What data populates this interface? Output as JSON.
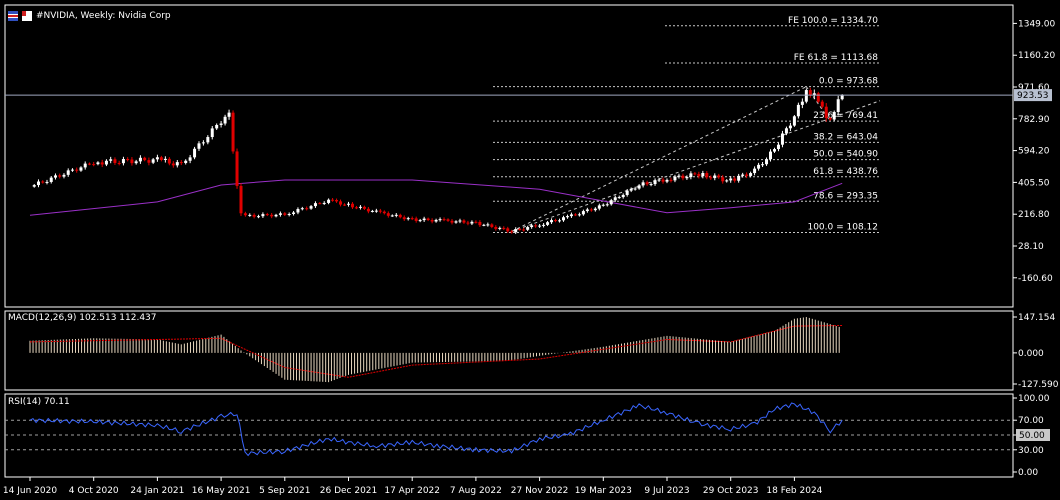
{
  "window": {
    "title": "#NVIDIA, Weekly:  Nvidia Corp",
    "colors": {
      "background": "#000000",
      "grid": "#ffffff",
      "bull": "#ffffff",
      "bear": "#e00000",
      "ma": "#9a30c8",
      "rsi": "#3a66ff",
      "macd_signal": "#e00000",
      "price_line": "#a0a8c0"
    }
  },
  "chart_data": [
    {
      "type": "candlestick",
      "panel": "main",
      "title": "#NVIDIA, Weekly:  Nvidia Corp",
      "y_axis_ticks": [
        1349.0,
        1160.2,
        971.6,
        782.9,
        594.2,
        405.5,
        216.8,
        28.1,
        -160.6
      ],
      "y_axis_ticks_labels": [
        "1349.00",
        "1160.20",
        "971.60",
        "782.90",
        "594.20",
        "405.50",
        "216.80",
        "28.10",
        "-160.60"
      ],
      "ylim": [
        -260,
        1410
      ],
      "current_price": 923.53,
      "current_price_label": "923.53",
      "x_axis_ticks": [
        "14 Jun 2020",
        "4 Oct 2020",
        "24 Jan 2021",
        "16 May 2021",
        "5 Sep 2021",
        "26 Dec 2021",
        "17 Apr 2022",
        "7 Aug 2022",
        "27 Nov 2022",
        "19 Mar 2023",
        "9 Jul 2023",
        "29 Oct 2023",
        "18 Feb 2024"
      ],
      "fibonacci_levels": [
        {
          "label": "FE 100.0 = 1334.70",
          "value": 1334.7
        },
        {
          "label": "FE 61.8 = 1113.68",
          "value": 1113.68
        },
        {
          "label": "0.0 = 973.68",
          "value": 973.68
        },
        {
          "label": "23.6 = 769.41",
          "value": 769.41
        },
        {
          "label": "38.2 = 643.04",
          "value": 643.04
        },
        {
          "label": "50.0 = 540.90",
          "value": 540.9
        },
        {
          "label": "61.8 = 438.76",
          "value": 438.76
        },
        {
          "label": "78.6 = 293.35",
          "value": 293.35
        },
        {
          "label": "100.0 = 108.12",
          "value": 108.12
        }
      ],
      "price_series": [
        {
          "date": "14 Jun 2020",
          "close": 380
        },
        {
          "date": "4 Oct 2020",
          "close": 525
        },
        {
          "date": "24 Jan 2021",
          "close": 540
        },
        {
          "date": "7 Mar 2021",
          "close": 510
        },
        {
          "date": "16 May 2021",
          "close": 770
        },
        {
          "date": "30 May 2021",
          "close": 800
        },
        {
          "date": "20 Jun 2021",
          "close": 205
        },
        {
          "date": "5 Sep 2021",
          "close": 215
        },
        {
          "date": "21 Nov 2021",
          "close": 300
        },
        {
          "date": "26 Dec 2021",
          "close": 270
        },
        {
          "date": "13 Feb 2022",
          "close": 230
        },
        {
          "date": "17 Apr 2022",
          "close": 185
        },
        {
          "date": "5 Jun 2022",
          "close": 180
        },
        {
          "date": "7 Aug 2022",
          "close": 165
        },
        {
          "date": "9 Oct 2022",
          "close": 115
        },
        {
          "date": "27 Nov 2022",
          "close": 155
        },
        {
          "date": "15 Jan 2023",
          "close": 200
        },
        {
          "date": "19 Mar 2023",
          "close": 270
        },
        {
          "date": "21 May 2023",
          "close": 390
        },
        {
          "date": "9 Jul 2023",
          "close": 425
        },
        {
          "date": "3 Sep 2023",
          "close": 455
        },
        {
          "date": "29 Oct 2023",
          "close": 415
        },
        {
          "date": "10 Dec 2023",
          "close": 475
        },
        {
          "date": "14 Jan 2024",
          "close": 600
        },
        {
          "date": "18 Feb 2024",
          "close": 800
        },
        {
          "date": "10 Mar 2024",
          "close": 960
        },
        {
          "date": "31 Mar 2024",
          "close": 880
        },
        {
          "date": "21 Apr 2024",
          "close": 780
        },
        {
          "date": "12 May 2024",
          "close": 923.53
        }
      ],
      "moving_average": [
        {
          "date": "14 Jun 2020",
          "value": 210
        },
        {
          "date": "24 Jan 2021",
          "value": 290
        },
        {
          "date": "16 May 2021",
          "value": 390
        },
        {
          "date": "5 Sep 2021",
          "value": 420
        },
        {
          "date": "17 Apr 2022",
          "value": 420
        },
        {
          "date": "27 Nov 2022",
          "value": 365
        },
        {
          "date": "19 Mar 2023",
          "value": 295
        },
        {
          "date": "9 Jul 2023",
          "value": 225
        },
        {
          "date": "29 Oct 2023",
          "value": 255
        },
        {
          "date": "18 Feb 2024",
          "value": 290
        },
        {
          "date": "12 May 2024",
          "value": 400
        }
      ]
    },
    {
      "type": "bar",
      "panel": "macd",
      "label": "MACD(12,26,9) 102.513 112.437",
      "y_axis_ticks_labels": [
        "147.154",
        "0.000",
        "-127.590"
      ],
      "y_axis_ticks": [
        147.154,
        0,
        -127.59
      ],
      "histogram": [
        {
          "date": "14 Jun 2020",
          "value": 50
        },
        {
          "date": "4 Oct 2020",
          "value": 60
        },
        {
          "date": "24 Jan 2021",
          "value": 55
        },
        {
          "date": "7 Mar 2021",
          "value": 35
        },
        {
          "date": "16 May 2021",
          "value": 75
        },
        {
          "date": "20 Jun 2021",
          "value": 10
        },
        {
          "date": "5 Sep 2021",
          "value": -110
        },
        {
          "date": "21 Nov 2021",
          "value": -120
        },
        {
          "date": "26 Dec 2021",
          "value": -90
        },
        {
          "date": "17 Apr 2022",
          "value": -40
        },
        {
          "date": "7 Aug 2022",
          "value": -35
        },
        {
          "date": "9 Oct 2022",
          "value": -30
        },
        {
          "date": "27 Nov 2022",
          "value": -12
        },
        {
          "date": "19 Mar 2023",
          "value": 25
        },
        {
          "date": "9 Jul 2023",
          "value": 70
        },
        {
          "date": "29 Oct 2023",
          "value": 45
        },
        {
          "date": "14 Jan 2024",
          "value": 90
        },
        {
          "date": "18 Feb 2024",
          "value": 140
        },
        {
          "date": "10 Mar 2024",
          "value": 147
        },
        {
          "date": "21 Apr 2024",
          "value": 118
        },
        {
          "date": "12 May 2024",
          "value": 102.513
        }
      ],
      "signal": [
        {
          "date": "14 Jun 2020",
          "value": 45
        },
        {
          "date": "24 Jan 2021",
          "value": 55
        },
        {
          "date": "16 May 2021",
          "value": 60
        },
        {
          "date": "5 Sep 2021",
          "value": -60
        },
        {
          "date": "26 Dec 2021",
          "value": -100
        },
        {
          "date": "17 Apr 2022",
          "value": -50
        },
        {
          "date": "27 Nov 2022",
          "value": -25
        },
        {
          "date": "9 Jul 2023",
          "value": 55
        },
        {
          "date": "29 Oct 2023",
          "value": 45
        },
        {
          "date": "18 Feb 2024",
          "value": 110
        },
        {
          "date": "12 May 2024",
          "value": 112.437
        }
      ]
    },
    {
      "type": "line",
      "panel": "rsi",
      "label": "RSI(14) 70.11",
      "y_axis_ticks_labels": [
        "100.00",
        "70.00",
        "50.00",
        "30.00",
        "0.00"
      ],
      "y_axis_ticks": [
        100,
        70,
        50,
        30,
        0
      ],
      "levels": [
        70,
        50,
        30
      ],
      "series": [
        {
          "date": "14 Jun 2020",
          "value": 70
        },
        {
          "date": "4 Oct 2020",
          "value": 68
        },
        {
          "date": "24 Jan 2021",
          "value": 63
        },
        {
          "date": "7 Mar 2021",
          "value": 55
        },
        {
          "date": "16 May 2021",
          "value": 75
        },
        {
          "date": "13 Jun 2021",
          "value": 80
        },
        {
          "date": "27 Jun 2021",
          "value": 25
        },
        {
          "date": "5 Sep 2021",
          "value": 28
        },
        {
          "date": "21 Nov 2021",
          "value": 45
        },
        {
          "date": "26 Dec 2021",
          "value": 40
        },
        {
          "date": "13 Feb 2022",
          "value": 35
        },
        {
          "date": "17 Apr 2022",
          "value": 40
        },
        {
          "date": "5 Jun 2022",
          "value": 35
        },
        {
          "date": "7 Aug 2022",
          "value": 30
        },
        {
          "date": "9 Oct 2022",
          "value": 28
        },
        {
          "date": "27 Nov 2022",
          "value": 45
        },
        {
          "date": "15 Jan 2023",
          "value": 50
        },
        {
          "date": "19 Mar 2023",
          "value": 70
        },
        {
          "date": "21 May 2023",
          "value": 90
        },
        {
          "date": "9 Jul 2023",
          "value": 80
        },
        {
          "date": "3 Sep 2023",
          "value": 65
        },
        {
          "date": "29 Oct 2023",
          "value": 58
        },
        {
          "date": "10 Dec 2023",
          "value": 65
        },
        {
          "date": "14 Jan 2024",
          "value": 85
        },
        {
          "date": "18 Feb 2024",
          "value": 92
        },
        {
          "date": "24 Mar 2024",
          "value": 80
        },
        {
          "date": "21 Apr 2024",
          "value": 55
        },
        {
          "date": "12 May 2024",
          "value": 70.11
        }
      ]
    }
  ]
}
